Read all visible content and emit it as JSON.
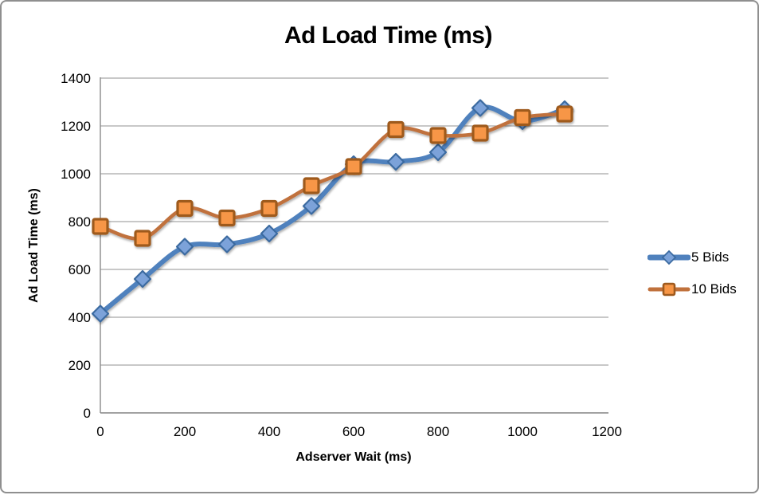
{
  "chart_data": {
    "type": "line",
    "title": "Ad Load Time (ms)",
    "xlabel": "Adserver Wait (ms)",
    "ylabel": "Ad Load Time (ms)",
    "x": [
      0,
      100,
      200,
      300,
      400,
      500,
      600,
      700,
      800,
      900,
      1000,
      1100
    ],
    "series": [
      {
        "name": "5 Bids",
        "marker": "diamond",
        "line_color": "#4f81bd",
        "marker_fill": "#7ba2d9",
        "marker_stroke": "#3a6aa0",
        "values": [
          415,
          560,
          695,
          705,
          750,
          865,
          1040,
          1050,
          1090,
          1275,
          1220,
          1270
        ]
      },
      {
        "name": "10 Bids",
        "marker": "square",
        "line_color": "#c0713c",
        "marker_fill": "#f79646",
        "marker_stroke": "#9e5a1e",
        "values": [
          780,
          730,
          855,
          815,
          855,
          950,
          1030,
          1185,
          1160,
          1170,
          1235,
          1250
        ]
      }
    ],
    "x_ticks": [
      0,
      200,
      400,
      600,
      800,
      1000,
      1200
    ],
    "y_ticks": [
      0,
      200,
      400,
      600,
      800,
      1000,
      1200,
      1400
    ],
    "xlim": [
      0,
      1200
    ],
    "ylim": [
      0,
      1400
    ],
    "grid": "horizontal",
    "smooth_lines": true,
    "legend_position": "right"
  },
  "colors": {
    "gridline": "#a6a6a6",
    "axis_line": "#8a8a8a",
    "tick_text": "#000000",
    "frame_border": "#8f8f8f",
    "background": "#ffffff"
  }
}
